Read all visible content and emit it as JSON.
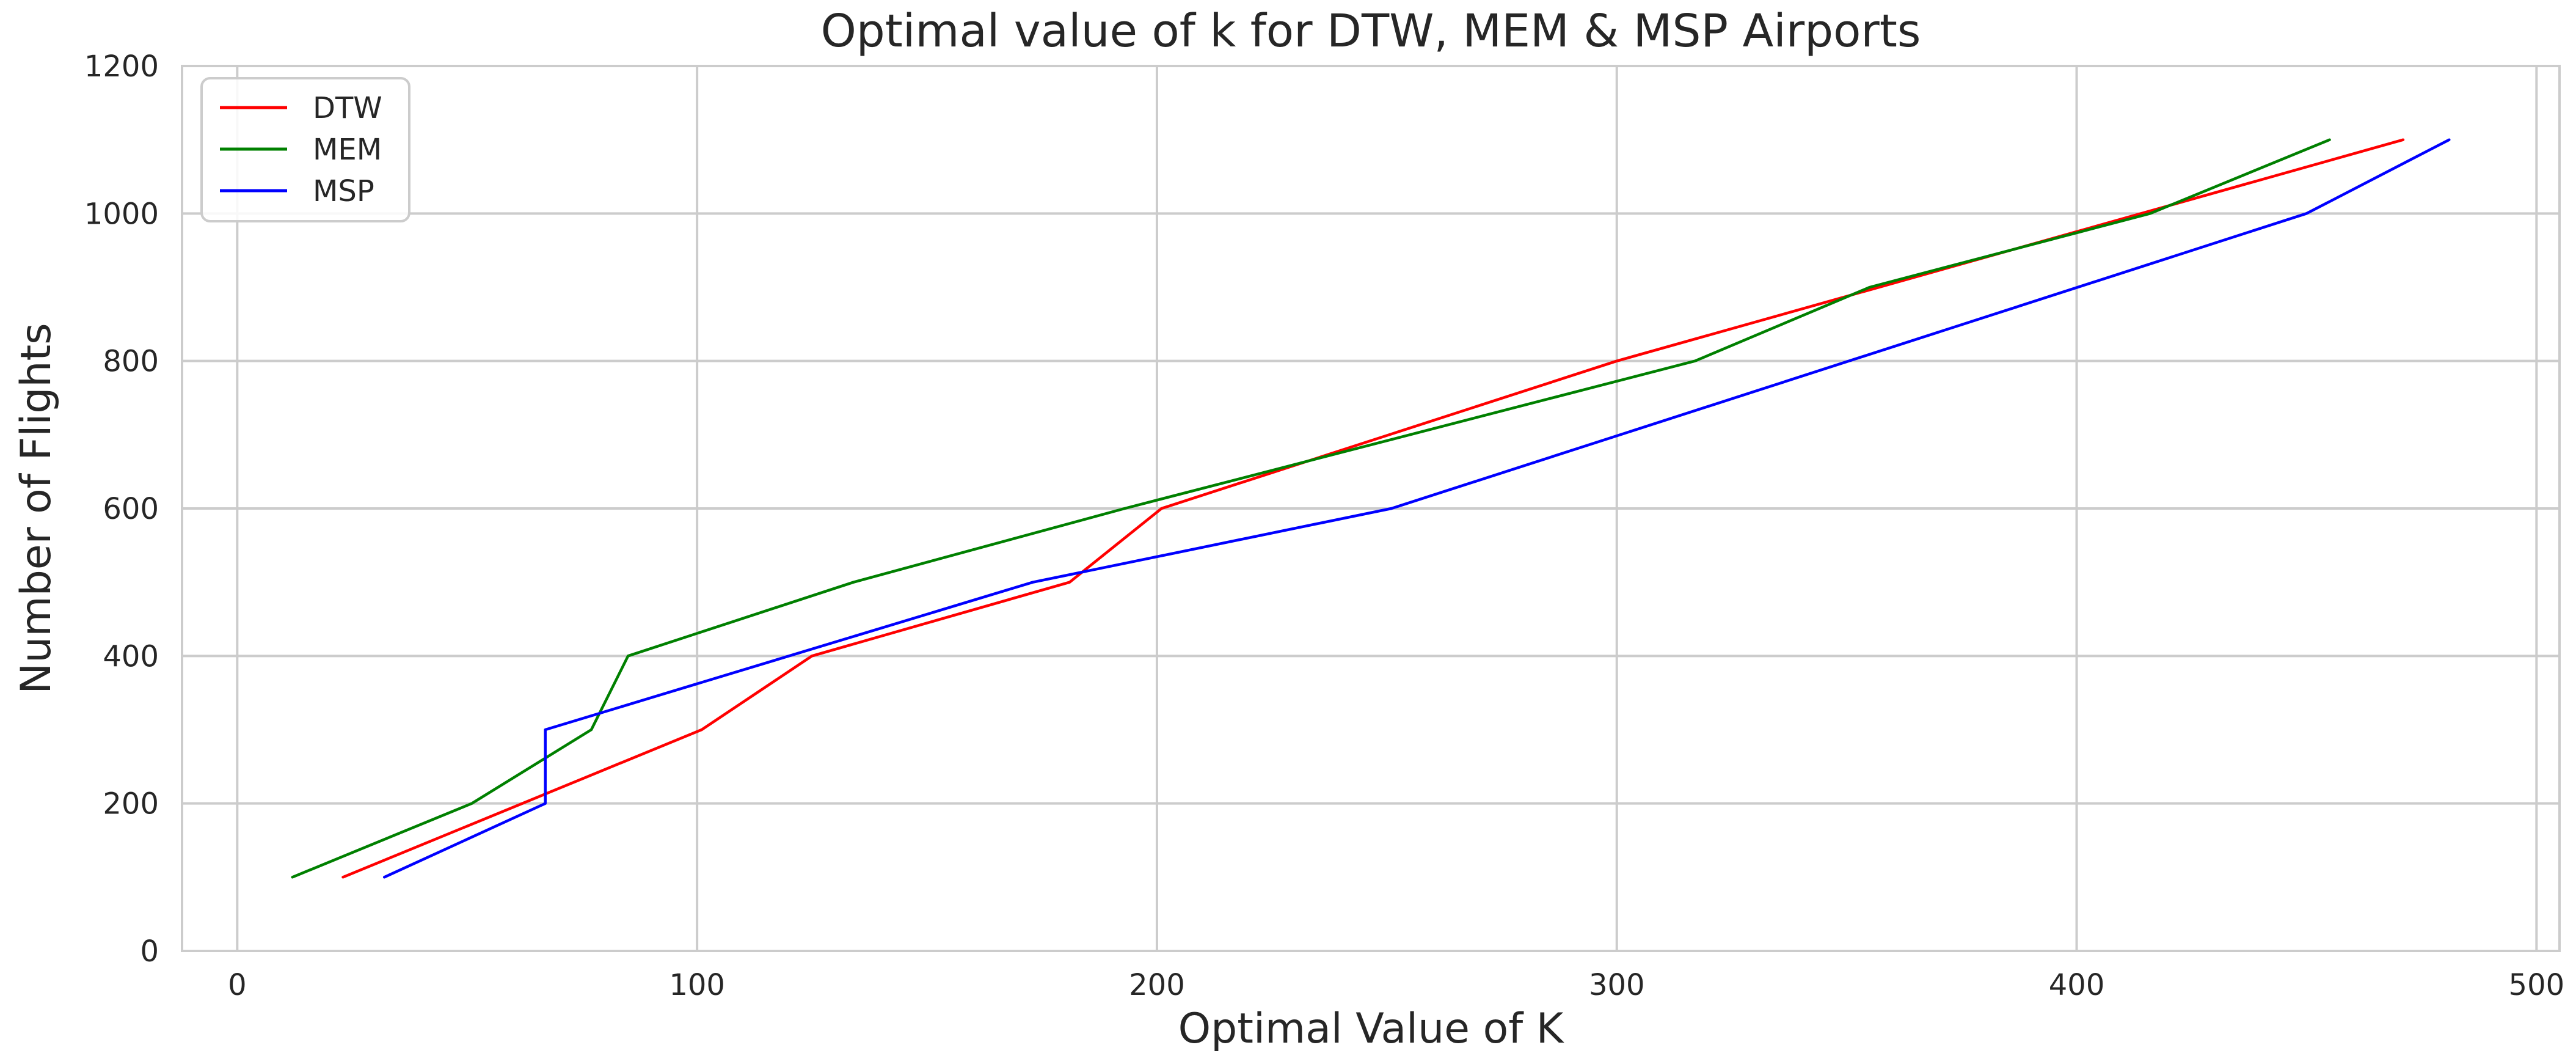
{
  "chart_data": {
    "type": "line",
    "title": "Optimal value of k for DTW, MEM & MSP Airports",
    "xlabel": "Optimal Value of K",
    "ylabel": "Number of Flights",
    "xlim": [
      -12,
      505
    ],
    "ylim": [
      0,
      1200
    ],
    "x_ticks": [
      0,
      100,
      200,
      300,
      400,
      500
    ],
    "y_ticks": [
      0,
      200,
      400,
      600,
      800,
      1000,
      1200
    ],
    "grid": true,
    "legend_position": "top-left",
    "series": [
      {
        "name": "DTW",
        "color": "#ff0000",
        "points": [
          [
            23,
            100
          ],
          [
            101,
            300
          ],
          [
            125,
            400
          ],
          [
            181,
            500
          ],
          [
            201,
            600
          ],
          [
            300,
            800
          ],
          [
            471,
            1100
          ]
        ]
      },
      {
        "name": "MEM",
        "color": "#008000",
        "points": [
          [
            12,
            100
          ],
          [
            51,
            200
          ],
          [
            77,
            300
          ],
          [
            85,
            400
          ],
          [
            134,
            500
          ],
          [
            193,
            600
          ],
          [
            317,
            800
          ],
          [
            355,
            900
          ],
          [
            416,
            1000
          ],
          [
            455,
            1100
          ]
        ]
      },
      {
        "name": "MSP",
        "color": "#0000ff",
        "points": [
          [
            32,
            100
          ],
          [
            67,
            200
          ],
          [
            67,
            300
          ],
          [
            173,
            500
          ],
          [
            251,
            600
          ],
          [
            450,
            1000
          ],
          [
            481,
            1100
          ]
        ]
      }
    ]
  }
}
